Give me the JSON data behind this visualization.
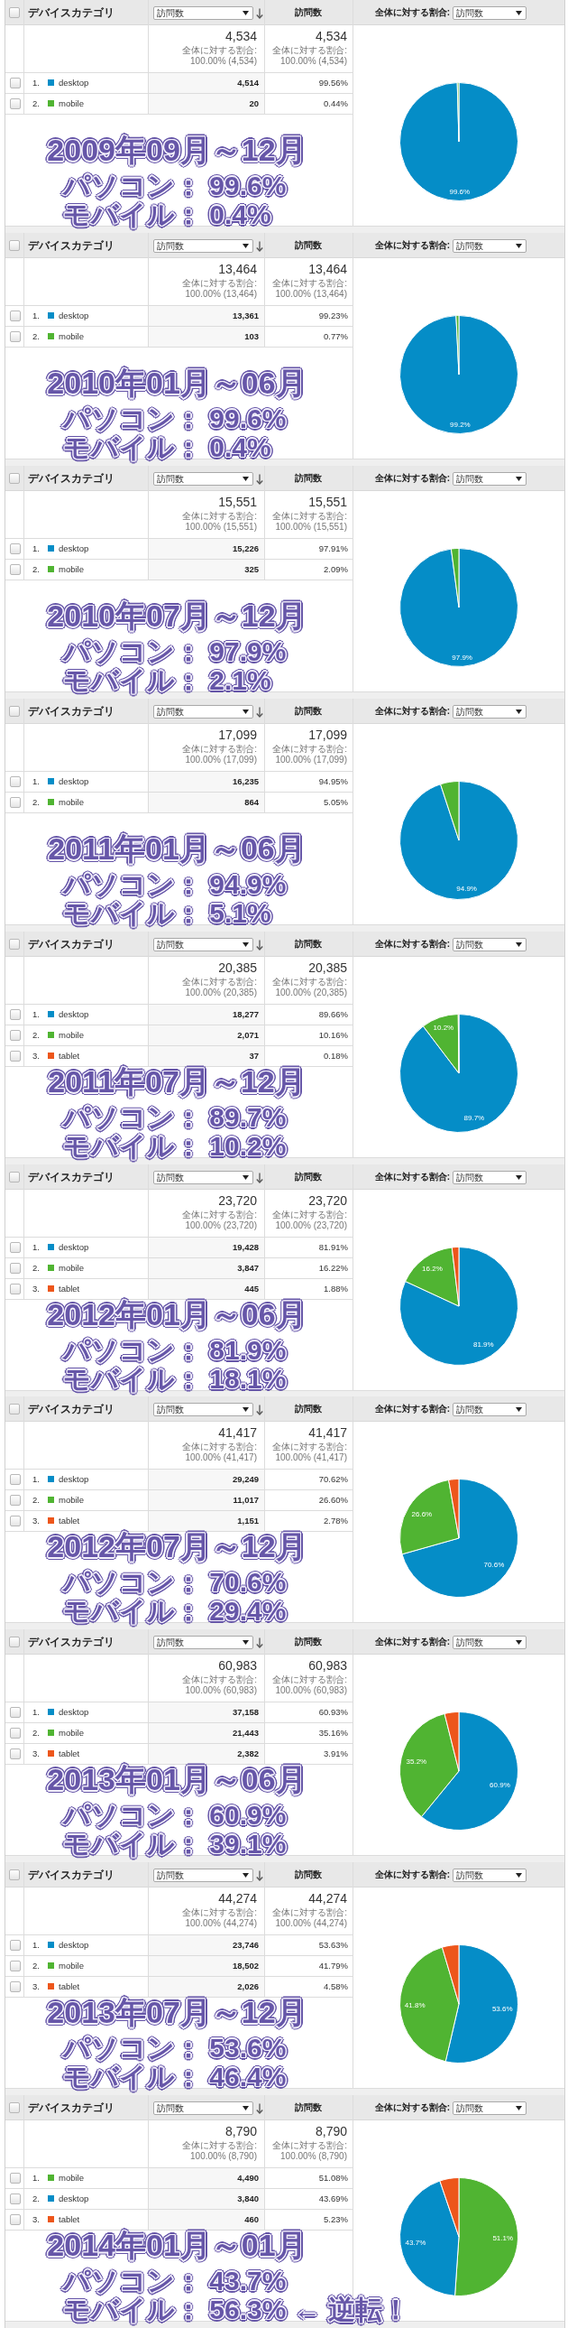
{
  "chart_data": [
    {
      "type": "pie",
      "title": "2009年09月～12月",
      "legend_title": "デバイスカテゴリ",
      "legend": "left",
      "categories": [
        "desktop",
        "mobile"
      ],
      "values": [
        99.56,
        0.44
      ],
      "colors": [
        "#058dc7",
        "#50b432"
      ],
      "value_labels": [
        "99.6%",
        null
      ],
      "annotations": [
        "訪問数",
        "全体に対する割合:",
        "4,534",
        "全体に対する割合: 100.00% (4,534)",
        "1.",
        "4,514",
        "99.56%",
        "2.",
        "20",
        "0.44%",
        "パソコン： 99.6%",
        "モバイル： 0.4%"
      ]
    },
    {
      "type": "pie",
      "title": "2010年01月～06月",
      "legend_title": "デバイスカテゴリ",
      "legend": "left",
      "categories": [
        "desktop",
        "mobile"
      ],
      "values": [
        99.23,
        0.77
      ],
      "colors": [
        "#058dc7",
        "#50b432"
      ],
      "value_labels": [
        "99.2%",
        null
      ],
      "annotations": [
        "訪問数",
        "全体に対する割合:",
        "13,464",
        "全体に対する割合: 100.00% (13,464)",
        "1.",
        "13,361",
        "99.23%",
        "2.",
        "103",
        "0.77%",
        "パソコン： 99.6%",
        "モバイル： 0.4%"
      ]
    },
    {
      "type": "pie",
      "title": "2010年07月～12月",
      "legend_title": "デバイスカテゴリ",
      "legend": "left",
      "categories": [
        "desktop",
        "mobile"
      ],
      "values": [
        97.91,
        2.09
      ],
      "colors": [
        "#058dc7",
        "#50b432"
      ],
      "value_labels": [
        "97.9%",
        null
      ],
      "annotations": [
        "訪問数",
        "全体に対する割合:",
        "15,551",
        "全体に対する割合: 100.00% (15,551)",
        "1.",
        "15,226",
        "97.91%",
        "2.",
        "325",
        "2.09%",
        "パソコン： 97.9%",
        "モバイル： 2.1%"
      ]
    },
    {
      "type": "pie",
      "title": "2011年01月～06月",
      "legend_title": "デバイスカテゴリ",
      "legend": "left",
      "categories": [
        "desktop",
        "mobile"
      ],
      "values": [
        94.95,
        5.05
      ],
      "colors": [
        "#058dc7",
        "#50b432"
      ],
      "value_labels": [
        "94.9%",
        null
      ],
      "annotations": [
        "訪問数",
        "全体に対する割合:",
        "17,099",
        "全体に対する割合: 100.00% (17,099)",
        "1.",
        "16,235",
        "94.95%",
        "2.",
        "864",
        "5.05%",
        "パソコン： 94.9%",
        "モバイル： 5.1%"
      ]
    },
    {
      "type": "pie",
      "title": "2011年07月～12月",
      "legend_title": "デバイスカテゴリ",
      "legend": "left",
      "categories": [
        "desktop",
        "mobile",
        "tablet"
      ],
      "values": [
        89.66,
        10.16,
        0.18
      ],
      "colors": [
        "#058dc7",
        "#50b432",
        "#ed561b"
      ],
      "value_labels": [
        "89.7%",
        "10.2%",
        null
      ],
      "annotations": [
        "訪問数",
        "全体に対する割合:",
        "20,385",
        "全体に対する割合: 100.00% (20,385)",
        "1.",
        "18,277",
        "89.66%",
        "2.",
        "2,071",
        "10.16%",
        "3.",
        "37",
        "0.18%",
        "パソコン： 89.7%",
        "モバイル： 10.2%"
      ]
    },
    {
      "type": "pie",
      "title": "2012年01月～06月",
      "legend_title": "デバイスカテゴリ",
      "legend": "left",
      "categories": [
        "desktop",
        "mobile",
        "tablet"
      ],
      "values": [
        81.91,
        16.22,
        1.88
      ],
      "colors": [
        "#058dc7",
        "#50b432",
        "#ed561b"
      ],
      "value_labels": [
        "81.9%",
        "16.2%",
        null
      ],
      "annotations": [
        "訪問数",
        "全体に対する割合:",
        "23,720",
        "全体に対する割合: 100.00% (23,720)",
        "1.",
        "19,428",
        "81.91%",
        "2.",
        "3,847",
        "16.22%",
        "3.",
        "445",
        "1.88%",
        "パソコン： 81.9%",
        "モバイル： 18.1%"
      ]
    },
    {
      "type": "pie",
      "title": "2012年07月～12月",
      "legend_title": "デバイスカテゴリ",
      "legend": "left",
      "categories": [
        "desktop",
        "mobile",
        "tablet"
      ],
      "values": [
        70.62,
        26.6,
        2.78
      ],
      "colors": [
        "#058dc7",
        "#50b432",
        "#ed561b"
      ],
      "value_labels": [
        "70.6%",
        "26.6%",
        null
      ],
      "annotations": [
        "訪問数",
        "全体に対する割合:",
        "41,417",
        "全体に対する割合: 100.00% (41,417)",
        "1.",
        "29,249",
        "70.62%",
        "2.",
        "11,017",
        "26.60%",
        "3.",
        "1,151",
        "2.78%",
        "パソコン： 70.6%",
        "モバイル： 29.4%"
      ]
    },
    {
      "type": "pie",
      "title": "2013年01月～06月",
      "legend_title": "デバイスカテゴリ",
      "legend": "left",
      "categories": [
        "desktop",
        "mobile",
        "tablet"
      ],
      "values": [
        60.93,
        35.16,
        3.91
      ],
      "colors": [
        "#058dc7",
        "#50b432",
        "#ed561b"
      ],
      "value_labels": [
        "60.9%",
        "35.2%",
        null
      ],
      "annotations": [
        "訪問数",
        "全体に対する割合:",
        "60,983",
        "全体に対する割合: 100.00% (60,983)",
        "1.",
        "37,158",
        "60.93%",
        "2.",
        "21,443",
        "35.16%",
        "3.",
        "2,382",
        "3.91%",
        "パソコン： 60.9%",
        "モバイル： 39.1%"
      ]
    },
    {
      "type": "pie",
      "title": "2013年07月～12月",
      "legend_title": "デバイスカテゴリ",
      "legend": "left",
      "categories": [
        "desktop",
        "mobile",
        "tablet"
      ],
      "values": [
        53.63,
        41.79,
        4.58
      ],
      "colors": [
        "#058dc7",
        "#50b432",
        "#ed561b"
      ],
      "value_labels": [
        "53.6%",
        "41.8%",
        null
      ],
      "annotations": [
        "訪問数",
        "全体に対する割合:",
        "44,274",
        "全体に対する割合: 100.00% (44,274)",
        "1.",
        "23,746",
        "53.63%",
        "2.",
        "18,502",
        "41.79%",
        "3.",
        "2,026",
        "4.58%",
        "パソコン： 53.6%",
        "モバイル： 46.4%"
      ]
    },
    {
      "type": "pie",
      "title": "2014年01月～01月",
      "legend_title": "デバイスカテゴリ",
      "legend": "left",
      "categories": [
        "mobile",
        "desktop",
        "tablet"
      ],
      "values": [
        51.08,
        43.69,
        5.23
      ],
      "colors": [
        "#50b432",
        "#058dc7",
        "#ed561b"
      ],
      "value_labels": [
        "51.1%",
        "43.7%",
        null
      ],
      "annotations": [
        "訪問数",
        "全体に対する割合:",
        "8,790",
        "全体に対する割合: 100.00% (8,790)",
        "1.",
        "4,490",
        "51.08%",
        "2.",
        "3,840",
        "43.69%",
        "3.",
        "460",
        "5.23%",
        "パソコン： 43.7%",
        "モバイル： 56.3% ← 逆転！"
      ]
    }
  ]
}
